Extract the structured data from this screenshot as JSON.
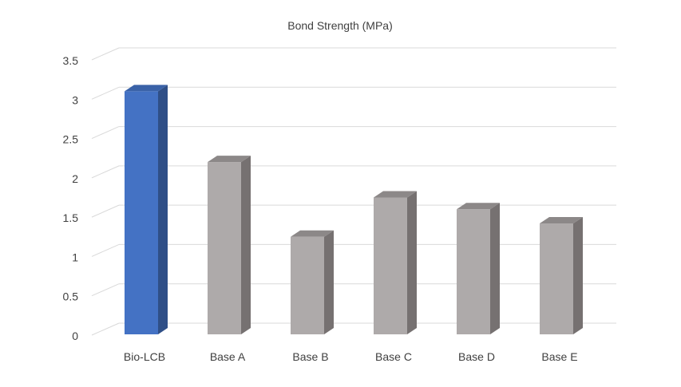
{
  "chart_data": {
    "type": "bar",
    "style": "3d-column",
    "title": "Bond Strength (MPa)",
    "xlabel": "",
    "ylabel": "",
    "categories": [
      "Bio-LCB",
      "Base A",
      "Base B",
      "Base C",
      "Base D",
      "Base E"
    ],
    "values": [
      3.1,
      2.2,
      1.25,
      1.75,
      1.6,
      1.42
    ],
    "ylim": [
      0,
      3.5
    ],
    "yticks": [
      "0",
      "0.5",
      "1",
      "1.5",
      "2",
      "2.5",
      "3",
      "3.5"
    ],
    "grid": true,
    "legend": "none",
    "colors": {
      "highlight_front": "#4472C4",
      "highlight_side": "#2F4F87",
      "highlight_top": "#3A62A8",
      "default_front": "#AEAAAA",
      "default_side": "#767171",
      "default_top": "#8C8888",
      "grid": "#D9D9D9",
      "text": "#404040"
    },
    "highlight_index": 0
  }
}
